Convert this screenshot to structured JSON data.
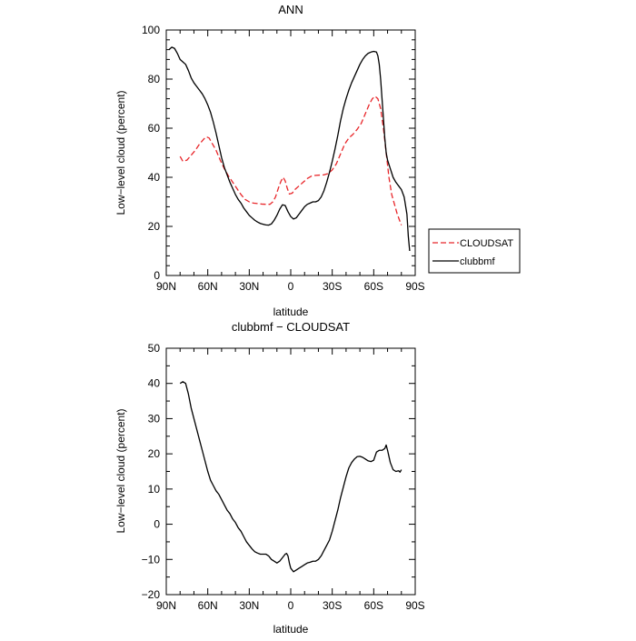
{
  "chart_data": [
    {
      "type": "line",
      "title": "ANN",
      "xlabel": "latitude",
      "ylabel": "Low−level cloud (percent)",
      "xlim": [
        90,
        -90
      ],
      "ylim": [
        0,
        100
      ],
      "x_ticks": [
        90,
        60,
        30,
        0,
        -30,
        -60,
        -90
      ],
      "x_tick_labels": [
        "90N",
        "60N",
        "30N",
        "0",
        "30S",
        "60S",
        "90S"
      ],
      "y_ticks": [
        0,
        20,
        40,
        60,
        80,
        100
      ],
      "y_tick_labels": [
        "0",
        "20",
        "40",
        "60",
        "80",
        "100"
      ],
      "legend_position": "right",
      "series": [
        {
          "name": "CLOUDSAT",
          "color": "#e8262a",
          "style": "dashed",
          "points": [
            [
              80,
              48.5
            ],
            [
              78,
              46.5
            ],
            [
              75,
              47
            ],
            [
              72,
              49
            ],
            [
              69,
              51
            ],
            [
              66,
              53.5
            ],
            [
              63,
              55.5
            ],
            [
              61,
              56.5
            ],
            [
              59,
              56
            ],
            [
              57,
              54
            ],
            [
              54,
              51
            ],
            [
              51,
              47
            ],
            [
              48,
              43.5
            ],
            [
              45,
              40.5
            ],
            [
              42,
              38
            ],
            [
              39,
              35.5
            ],
            [
              36,
              33
            ],
            [
              33,
              31
            ],
            [
              30,
              30
            ],
            [
              27,
              29.5
            ],
            [
              24,
              29.3
            ],
            [
              21,
              29.1
            ],
            [
              18,
              29
            ],
            [
              15,
              29
            ],
            [
              13,
              30
            ],
            [
              11,
              32
            ],
            [
              9,
              35.5
            ],
            [
              7,
              38.5
            ],
            [
              5.5,
              40
            ],
            [
              4,
              38.5
            ],
            [
              2.5,
              35.5
            ],
            [
              1,
              33.2
            ],
            [
              -1,
              33.5
            ],
            [
              -3,
              35
            ],
            [
              -6,
              36.5
            ],
            [
              -9,
              38
            ],
            [
              -12,
              39.5
            ],
            [
              -15,
              40.5
            ],
            [
              -18,
              40.8
            ],
            [
              -21,
              40.9
            ],
            [
              -24,
              41
            ],
            [
              -27,
              41.5
            ],
            [
              -30,
              43
            ],
            [
              -33,
              45.5
            ],
            [
              -36,
              49.5
            ],
            [
              -39,
              53.5
            ],
            [
              -42,
              56
            ],
            [
              -45,
              57.5
            ],
            [
              -48,
              59.5
            ],
            [
              -51,
              62
            ],
            [
              -54,
              66
            ],
            [
              -57,
              70
            ],
            [
              -59,
              72
            ],
            [
              -61,
              73
            ],
            [
              -63,
              72
            ],
            [
              -65,
              68
            ],
            [
              -67,
              60
            ],
            [
              -69,
              50
            ],
            [
              -71,
              40
            ],
            [
              -73,
              33
            ],
            [
              -75,
              29
            ],
            [
              -77,
              25
            ],
            [
              -79,
              22
            ],
            [
              -80,
              20.5
            ]
          ]
        },
        {
          "name": "clubbmf",
          "color": "#000000",
          "style": "solid",
          "points": [
            [
              88,
              92
            ],
            [
              86,
              93
            ],
            [
              84,
              92.5
            ],
            [
              82,
              90.5
            ],
            [
              80,
              88
            ],
            [
              78,
              87
            ],
            [
              76,
              86
            ],
            [
              74,
              83.5
            ],
            [
              72,
              80.5
            ],
            [
              70,
              78.5
            ],
            [
              68,
              77
            ],
            [
              66,
              75.5
            ],
            [
              64,
              74
            ],
            [
              62,
              72
            ],
            [
              60,
              69.5
            ],
            [
              58,
              66.5
            ],
            [
              56,
              62.5
            ],
            [
              54,
              58
            ],
            [
              52,
              53
            ],
            [
              50,
              48
            ],
            [
              48,
              44
            ],
            [
              46,
              41
            ],
            [
              44,
              38
            ],
            [
              42,
              35.5
            ],
            [
              40,
              33
            ],
            [
              38,
              31
            ],
            [
              36,
              29.5
            ],
            [
              34,
              27.5
            ],
            [
              32,
              26
            ],
            [
              30,
              24.5
            ],
            [
              28,
              23.5
            ],
            [
              26,
              22.5
            ],
            [
              24,
              21.8
            ],
            [
              22,
              21.2
            ],
            [
              20,
              20.9
            ],
            [
              18,
              20.6
            ],
            [
              16,
              20.5
            ],
            [
              14,
              21
            ],
            [
              12,
              22.5
            ],
            [
              10,
              24.5
            ],
            [
              8,
              27
            ],
            [
              6,
              28.8
            ],
            [
              4,
              28.5
            ],
            [
              2,
              26
            ],
            [
              0,
              24
            ],
            [
              -2,
              23
            ],
            [
              -4,
              23.5
            ],
            [
              -6,
              25
            ],
            [
              -8,
              26.5
            ],
            [
              -10,
              28
            ],
            [
              -12,
              29
            ],
            [
              -14,
              29.5
            ],
            [
              -16,
              30
            ],
            [
              -18,
              30
            ],
            [
              -20,
              30.5
            ],
            [
              -22,
              32
            ],
            [
              -24,
              34.5
            ],
            [
              -26,
              38
            ],
            [
              -28,
              42
            ],
            [
              -30,
              46.5
            ],
            [
              -32,
              51.5
            ],
            [
              -34,
              57
            ],
            [
              -36,
              63
            ],
            [
              -38,
              68
            ],
            [
              -40,
              72
            ],
            [
              -42,
              75.5
            ],
            [
              -44,
              78.5
            ],
            [
              -46,
              81
            ],
            [
              -48,
              83.5
            ],
            [
              -50,
              86
            ],
            [
              -52,
              88
            ],
            [
              -54,
              89.5
            ],
            [
              -56,
              90.5
            ],
            [
              -58,
              91
            ],
            [
              -60,
              91.3
            ],
            [
              -62,
              91
            ],
            [
              -63,
              89.5
            ],
            [
              -64,
              86
            ],
            [
              -65,
              80
            ],
            [
              -66,
              72
            ],
            [
              -67,
              64
            ],
            [
              -68,
              56
            ],
            [
              -69,
              50
            ],
            [
              -70,
              47
            ],
            [
              -72,
              43.5
            ],
            [
              -74,
              40
            ],
            [
              -76,
              38
            ],
            [
              -78,
              36.5
            ],
            [
              -80,
              35
            ],
            [
              -82,
              32
            ],
            [
              -84,
              25
            ],
            [
              -85,
              16
            ],
            [
              -86,
              10
            ]
          ]
        }
      ]
    },
    {
      "type": "line",
      "title": "clubbmf  −  CLOUDSAT",
      "xlabel": "latitude",
      "ylabel": "Low−level cloud (percent)",
      "xlim": [
        90,
        -90
      ],
      "ylim": [
        -20,
        50
      ],
      "x_ticks": [
        90,
        60,
        30,
        0,
        -30,
        -60,
        -90
      ],
      "x_tick_labels": [
        "90N",
        "60N",
        "30N",
        "0",
        "30S",
        "60S",
        "90S"
      ],
      "y_ticks": [
        -20,
        -10,
        0,
        10,
        20,
        30,
        40,
        50
      ],
      "y_tick_labels": [
        "−20",
        "−10",
        "0",
        "10",
        "20",
        "30",
        "40",
        "50"
      ],
      "series": [
        {
          "color": "#000000",
          "style": "solid",
          "points": [
            [
              80,
              40
            ],
            [
              78,
              40.5
            ],
            [
              76,
              40
            ],
            [
              74,
              37
            ],
            [
              72,
              33
            ],
            [
              70,
              30
            ],
            [
              68,
              27
            ],
            [
              66,
              24
            ],
            [
              64,
              21
            ],
            [
              62,
              18
            ],
            [
              60,
              15
            ],
            [
              58,
              12.5
            ],
            [
              56,
              11
            ],
            [
              54,
              9.5
            ],
            [
              52,
              8.5
            ],
            [
              50,
              7
            ],
            [
              48,
              5.5
            ],
            [
              46,
              4
            ],
            [
              44,
              3
            ],
            [
              42,
              1.5
            ],
            [
              40,
              0.5
            ],
            [
              38,
              -1
            ],
            [
              36,
              -2
            ],
            [
              34,
              -3.5
            ],
            [
              32,
              -5
            ],
            [
              30,
              -6
            ],
            [
              28,
              -7
            ],
            [
              26,
              -7.8
            ],
            [
              24,
              -8.2
            ],
            [
              22,
              -8.5
            ],
            [
              20,
              -8.5
            ],
            [
              18,
              -8.5
            ],
            [
              16,
              -9
            ],
            [
              14,
              -10
            ],
            [
              12,
              -10.5
            ],
            [
              10,
              -11
            ],
            [
              8,
              -10.5
            ],
            [
              6,
              -9.5
            ],
            [
              4,
              -8.5
            ],
            [
              3,
              -8.3
            ],
            [
              2,
              -9
            ],
            [
              1,
              -11
            ],
            [
              0,
              -12.5
            ],
            [
              -2,
              -13.5
            ],
            [
              -4,
              -13
            ],
            [
              -6,
              -12.5
            ],
            [
              -8,
              -12
            ],
            [
              -10,
              -11.5
            ],
            [
              -12,
              -11
            ],
            [
              -14,
              -10.8
            ],
            [
              -16,
              -10.5
            ],
            [
              -18,
              -10.5
            ],
            [
              -20,
              -10
            ],
            [
              -22,
              -9
            ],
            [
              -24,
              -7.5
            ],
            [
              -26,
              -6
            ],
            [
              -28,
              -4.5
            ],
            [
              -30,
              -2
            ],
            [
              -32,
              1
            ],
            [
              -34,
              4
            ],
            [
              -36,
              7.5
            ],
            [
              -38,
              10.5
            ],
            [
              -40,
              13.5
            ],
            [
              -42,
              16
            ],
            [
              -44,
              17.5
            ],
            [
              -46,
              18.5
            ],
            [
              -48,
              19.2
            ],
            [
              -50,
              19.3
            ],
            [
              -52,
              19
            ],
            [
              -54,
              18.5
            ],
            [
              -56,
              18
            ],
            [
              -58,
              17.8
            ],
            [
              -60,
              18.2
            ],
            [
              -62,
              20.5
            ],
            [
              -64,
              21
            ],
            [
              -66,
              21
            ],
            [
              -68,
              21.5
            ],
            [
              -69,
              22.5
            ],
            [
              -70,
              21
            ],
            [
              -72,
              17.5
            ],
            [
              -74,
              15.5
            ],
            [
              -76,
              15
            ],
            [
              -78,
              15.2
            ],
            [
              -79,
              14.8
            ],
            [
              -80,
              15.5
            ]
          ]
        }
      ]
    }
  ]
}
